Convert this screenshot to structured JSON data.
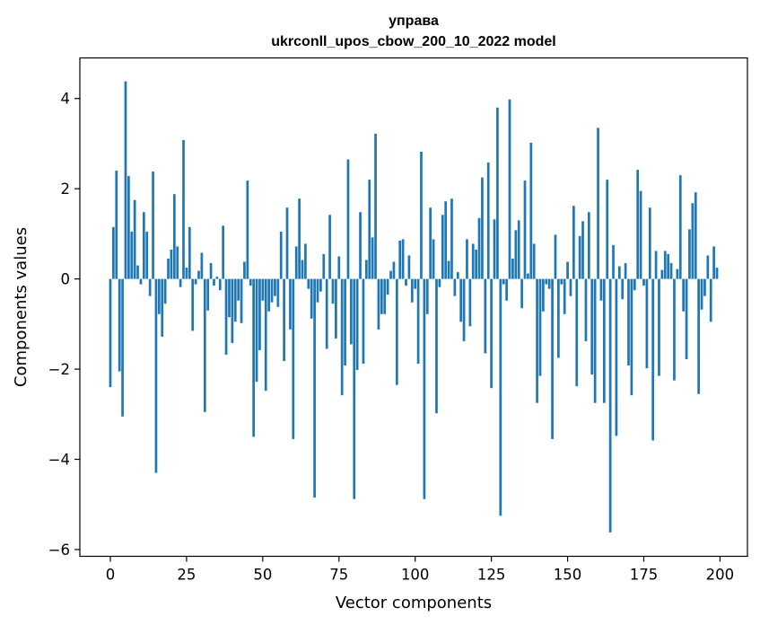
{
  "chart_data": {
    "type": "bar",
    "title": "управа",
    "subtitle": "ukrconll_upos_cbow_200_10_2022 model",
    "xlabel": "Vector components",
    "ylabel": "Components values",
    "xlim": [
      -10,
      209
    ],
    "ylim": [
      -6.15,
      4.9
    ],
    "x_ticks": [
      0,
      25,
      50,
      75,
      100,
      125,
      150,
      175,
      200
    ],
    "x_tick_labels": [
      "0",
      "25",
      "50",
      "75",
      "100",
      "125",
      "150",
      "175",
      "200"
    ],
    "y_ticks": [
      -6,
      -4,
      -2,
      0,
      2,
      4
    ],
    "y_tick_labels": [
      "−6",
      "−4",
      "−2",
      "0",
      "2",
      "4"
    ],
    "grid": false,
    "bar_color": "#1f77b4",
    "x": [
      0,
      1,
      2,
      3,
      4,
      5,
      6,
      7,
      8,
      9,
      10,
      11,
      12,
      13,
      14,
      15,
      16,
      17,
      18,
      19,
      20,
      21,
      22,
      23,
      24,
      25,
      26,
      27,
      28,
      29,
      30,
      31,
      32,
      33,
      34,
      35,
      36,
      37,
      38,
      39,
      40,
      41,
      42,
      43,
      44,
      45,
      46,
      47,
      48,
      49,
      50,
      51,
      52,
      53,
      54,
      55,
      56,
      57,
      58,
      59,
      60,
      61,
      62,
      63,
      64,
      65,
      66,
      67,
      68,
      69,
      70,
      71,
      72,
      73,
      74,
      75,
      76,
      77,
      78,
      79,
      80,
      81,
      82,
      83,
      84,
      85,
      86,
      87,
      88,
      89,
      90,
      91,
      92,
      93,
      94,
      95,
      96,
      97,
      98,
      99,
      100,
      101,
      102,
      103,
      104,
      105,
      106,
      107,
      108,
      109,
      110,
      111,
      112,
      113,
      114,
      115,
      116,
      117,
      118,
      119,
      120,
      121,
      122,
      123,
      124,
      125,
      126,
      127,
      128,
      129,
      130,
      131,
      132,
      133,
      134,
      135,
      136,
      137,
      138,
      139,
      140,
      141,
      142,
      143,
      144,
      145,
      146,
      147,
      148,
      149,
      150,
      151,
      152,
      153,
      154,
      155,
      156,
      157,
      158,
      159,
      160,
      161,
      162,
      163,
      164,
      165,
      166,
      167,
      168,
      169,
      170,
      171,
      172,
      173,
      174,
      175,
      176,
      177,
      178,
      179,
      180,
      181,
      182,
      183,
      184,
      185,
      186,
      187,
      188,
      189,
      190,
      191,
      192,
      193,
      194,
      195,
      196,
      197,
      198,
      199
    ],
    "values": [
      -2.4,
      1.15,
      2.4,
      -2.05,
      -3.05,
      4.38,
      2.28,
      1.05,
      1.75,
      0.3,
      -0.12,
      1.48,
      1.05,
      -0.38,
      2.38,
      -4.3,
      -0.78,
      -1.28,
      -0.55,
      0.45,
      0.65,
      1.88,
      0.72,
      -0.18,
      3.08,
      0.25,
      1.15,
      -1.15,
      -0.12,
      0.18,
      0.58,
      -2.95,
      -0.7,
      0.35,
      -0.15,
      0.05,
      -0.25,
      1.18,
      -1.68,
      -0.85,
      -1.42,
      -0.95,
      -0.48,
      -0.98,
      0.38,
      2.18,
      -0.15,
      -3.5,
      -2.28,
      -1.58,
      -0.48,
      -2.48,
      -0.72,
      -0.52,
      -0.38,
      -0.62,
      1.05,
      -1.82,
      1.58,
      -1.12,
      -3.55,
      0.72,
      1.78,
      0.42,
      0.78,
      -0.22,
      -0.88,
      -4.85,
      -0.52,
      -0.28,
      0.55,
      -1.55,
      1.42,
      -0.55,
      -1.32,
      0.5,
      -2.58,
      -1.92,
      2.65,
      -1.45,
      -4.88,
      -2.02,
      1.48,
      -1.88,
      0.42,
      2.2,
      0.92,
      3.22,
      -1.12,
      -0.78,
      -0.78,
      -0.35,
      0.18,
      0.38,
      -2.35,
      0.85,
      0.88,
      -0.15,
      0.52,
      -0.52,
      -0.22,
      -1.88,
      2.82,
      -4.88,
      -0.78,
      1.58,
      0.88,
      -2.98,
      -0.18,
      1.42,
      1.72,
      0.4,
      1.78,
      -0.38,
      0.15,
      -0.95,
      -1.38,
      0.88,
      -1.05,
      0.78,
      0.65,
      1.35,
      2.25,
      -1.65,
      2.58,
      -2.42,
      1.32,
      3.8,
      -5.25,
      -0.12,
      -0.48,
      3.98,
      0.45,
      1.08,
      1.3,
      -0.65,
      2.18,
      0.12,
      3.02,
      0.78,
      -2.75,
      -2.15,
      -0.72,
      -0.12,
      -0.22,
      -3.55,
      0.98,
      -1.75,
      -0.12,
      -0.78,
      0.38,
      -0.38,
      1.62,
      -2.38,
      0.95,
      1.28,
      -1.38,
      1.48,
      -2.12,
      -2.75,
      3.35,
      -0.48,
      -2.75,
      2.2,
      -5.62,
      0.75,
      -3.48,
      0.28,
      -0.45,
      0.35,
      -1.92,
      -2.58,
      -0.25,
      2.42,
      1.95,
      -0.15,
      -1.98,
      1.58,
      -3.58,
      0.62,
      -2.15,
      0.2,
      0.62,
      0.55,
      0.35,
      -2.25,
      0.22,
      2.3,
      -0.72,
      -1.78,
      1.1,
      1.68,
      1.92,
      -2.55,
      -0.68,
      -0.38,
      0.52,
      -0.95,
      0.72,
      0.25
    ]
  }
}
